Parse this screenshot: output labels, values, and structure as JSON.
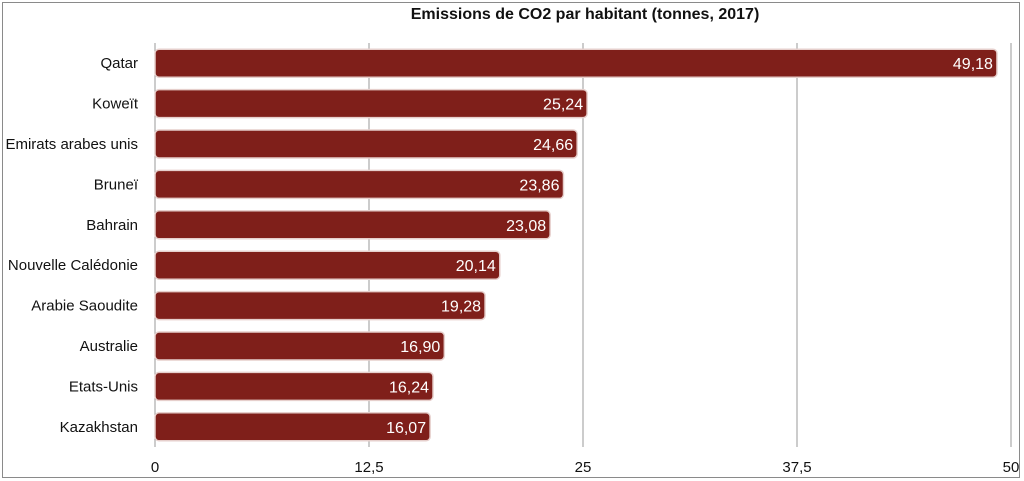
{
  "chart_data": {
    "type": "bar",
    "orientation": "horizontal",
    "title": "Emissions de CO2 par habitant (tonnes, 2017)",
    "categories": [
      "Qatar",
      "Koweït",
      "Emirats arabes unis",
      "Bruneï",
      "Bahrain",
      "Nouvelle Calédonie",
      "Arabie Saoudite",
      "Australie",
      "Etats-Unis",
      "Kazakhstan"
    ],
    "values": [
      49.18,
      25.24,
      24.66,
      23.86,
      23.08,
      20.14,
      19.28,
      16.9,
      16.24,
      16.07
    ],
    "value_labels": [
      "49,18",
      "25,24",
      "24,66",
      "23,86",
      "23,08",
      "20,14",
      "19,28",
      "16,90",
      "16,24",
      "16,07"
    ],
    "xlim": [
      0,
      50
    ],
    "xticks": [
      0,
      12.5,
      25,
      37.5,
      50
    ],
    "xtick_labels": [
      "0",
      "12,5",
      "25",
      "37,5",
      "50"
    ],
    "grid": true,
    "bar_color": "#7f1f1a",
    "bar_border_color": "#e6cfcc"
  }
}
